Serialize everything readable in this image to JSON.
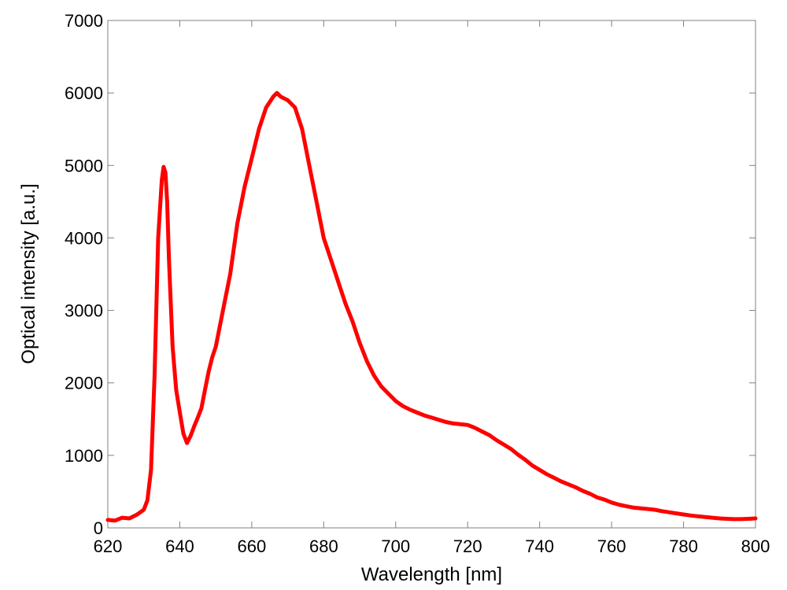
{
  "chart_data": {
    "type": "line",
    "title": "",
    "xlabel": "Wavelength [nm]",
    "ylabel": "Optical intensity [a.u.]",
    "xlim": [
      620,
      800
    ],
    "ylim": [
      0,
      7000
    ],
    "xticks": [
      620,
      640,
      660,
      680,
      700,
      720,
      740,
      760,
      780,
      800
    ],
    "yticks": [
      0,
      1000,
      2000,
      3000,
      4000,
      5000,
      6000,
      7000
    ],
    "grid": false,
    "legend": "none",
    "series": [
      {
        "color": "#ff0000",
        "x": [
          620,
          622,
          624,
          626,
          628,
          630,
          631,
          632,
          633,
          634,
          635,
          635.5,
          636,
          636.5,
          637,
          638,
          639,
          640,
          641,
          642,
          643,
          644,
          645,
          646,
          647,
          648,
          649,
          650,
          652,
          654,
          656,
          658,
          660,
          662,
          664,
          666,
          667,
          668,
          670,
          672,
          674,
          676,
          678,
          680,
          682,
          684,
          686,
          688,
          690,
          692,
          694,
          696,
          698,
          700,
          702,
          704,
          706,
          708,
          710,
          712,
          714,
          716,
          718,
          720,
          722,
          724,
          726,
          728,
          730,
          732,
          734,
          736,
          738,
          740,
          742,
          744,
          746,
          748,
          750,
          752,
          754,
          756,
          758,
          760,
          762,
          764,
          766,
          768,
          770,
          772,
          774,
          776,
          778,
          780,
          782,
          784,
          786,
          788,
          790,
          792,
          794,
          796,
          798,
          800
        ],
        "y": [
          110,
          100,
          140,
          130,
          180,
          250,
          380,
          800,
          2100,
          4000,
          4800,
          4980,
          4900,
          4500,
          3700,
          2500,
          1900,
          1600,
          1300,
          1170,
          1270,
          1400,
          1520,
          1650,
          1900,
          2150,
          2350,
          2500,
          3000,
          3500,
          4200,
          4700,
          5100,
          5500,
          5800,
          5950,
          6000,
          5950,
          5900,
          5800,
          5500,
          5000,
          4500,
          4000,
          3700,
          3400,
          3100,
          2850,
          2550,
          2300,
          2100,
          1950,
          1850,
          1750,
          1680,
          1630,
          1590,
          1550,
          1520,
          1490,
          1460,
          1440,
          1430,
          1420,
          1380,
          1330,
          1280,
          1210,
          1150,
          1090,
          1010,
          940,
          860,
          800,
          740,
          690,
          640,
          600,
          560,
          510,
          470,
          420,
          390,
          350,
          320,
          300,
          280,
          270,
          260,
          250,
          230,
          215,
          200,
          185,
          170,
          160,
          150,
          140,
          130,
          125,
          120,
          120,
          125,
          130
        ]
      }
    ]
  }
}
